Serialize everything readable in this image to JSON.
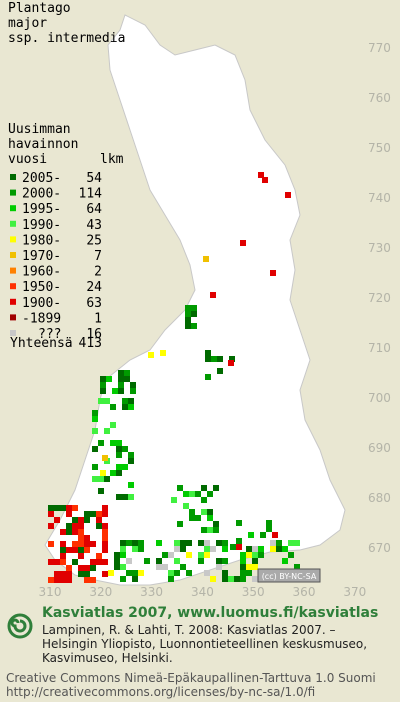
{
  "title_lines": [
    "Plantago",
    "major",
    "ssp. intermedia"
  ],
  "legend": {
    "header": [
      "Uusimman",
      "havainnon",
      "vuosi"
    ],
    "count_header": "lkm",
    "rows": [
      {
        "label": "2005-",
        "count": 54,
        "color": "#006a00"
      },
      {
        "label": "2000-",
        "count": 114,
        "color": "#009a00"
      },
      {
        "label": "1995-",
        "count": 64,
        "color": "#00cc00"
      },
      {
        "label": "1990-",
        "count": 43,
        "color": "#40f040"
      },
      {
        "label": "1980-",
        "count": 25,
        "color": "#ffff00"
      },
      {
        "label": "1970-",
        "count": 7,
        "color": "#f0c000"
      },
      {
        "label": "1960-",
        "count": 2,
        "color": "#ff8000"
      },
      {
        "label": "1950-",
        "count": 24,
        "color": "#ff3000"
      },
      {
        "label": "1900-",
        "count": 63,
        "color": "#e00000"
      },
      {
        "label": "-1899",
        "count": 1,
        "color": "#a00000"
      },
      {
        "label": "???",
        "count": 16,
        "color": "#c8c8c8"
      }
    ],
    "total_label": "Yhteensä",
    "total": 413
  },
  "grid": {
    "yticks": [
      770,
      760,
      750,
      740,
      730,
      720,
      710,
      700,
      690,
      680,
      670
    ],
    "xticks": [
      310,
      320,
      330,
      340,
      350,
      360,
      370
    ]
  },
  "badge": "(cc) BY-NC-SA",
  "footer": {
    "headline": "Kasviatlas 2007, www.luomus.fi/kasviatlas",
    "citation": [
      "Lampinen, R. & Lahti, T. 2008: Kasviatlas 2007. –",
      "Helsingin Yliopisto, Luonnontieteellinen keskusmuseo,",
      "Kasvimuseo, Helsinki."
    ],
    "license": [
      "Creative Commons Nimeä-Epäkaupallinen-Tarttuva 1.0 Suomi",
      "http://creativecommons.org/licenses/by-nc-sa/1.0/fi"
    ]
  }
}
